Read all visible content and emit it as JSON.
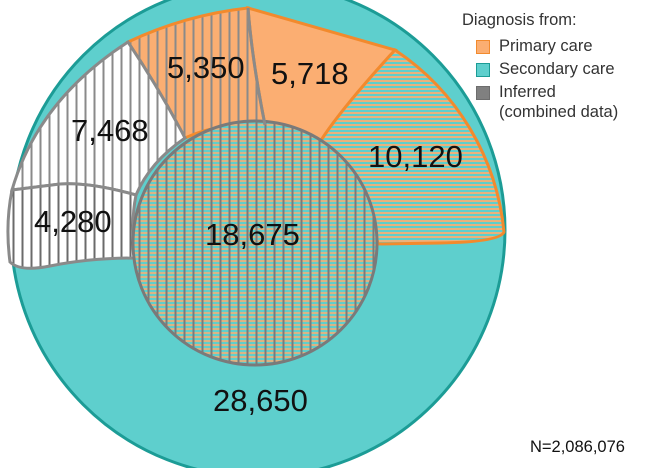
{
  "legend": {
    "title": "Diagnosis from:",
    "items": [
      {
        "label": "Primary care",
        "color": "#FBAE72",
        "border": "#F28A2D"
      },
      {
        "label": "Secondary care",
        "color": "#5ECFCD",
        "border": "#1C9C96"
      },
      {
        "label": "Inferred",
        "sublabel": "(combined data)",
        "color": "#808080",
        "border": "#6d6d6d"
      }
    ]
  },
  "regions": [
    {
      "id": "primary-secondary-overlap",
      "label": "5,718"
    },
    {
      "id": "primary-inferred-overlap",
      "label": "5,350"
    },
    {
      "id": "inferred-only",
      "label": "7,468"
    },
    {
      "id": "secondary-inferred-overlap",
      "label": "4,280"
    },
    {
      "id": "all-three-overlap",
      "label": "18,675"
    },
    {
      "id": "primary-secondary-striped",
      "label": "10,120"
    },
    {
      "id": "secondary-only",
      "label": "28,650"
    }
  ],
  "total_label": "N=2,086,076"
}
